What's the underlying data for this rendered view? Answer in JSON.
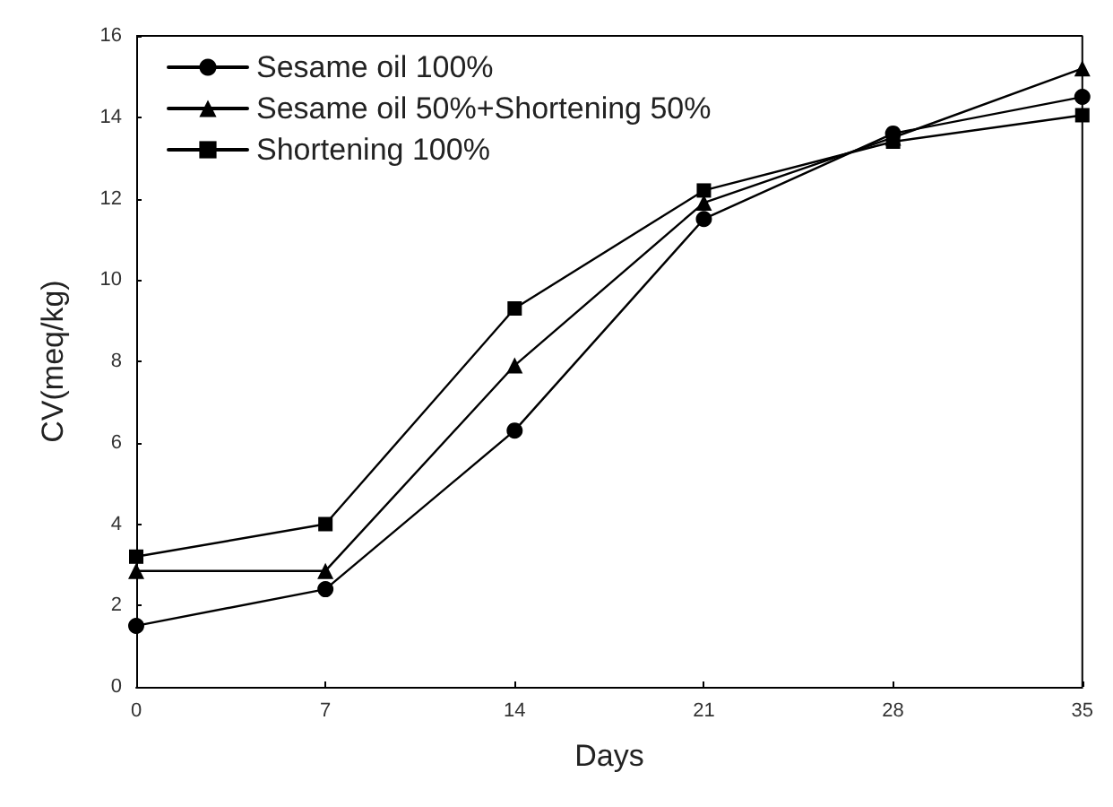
{
  "chart_data": {
    "type": "line",
    "xlabel": "Days",
    "ylabel": "CV(meq/kg)",
    "x": [
      0,
      7,
      14,
      21,
      28,
      35
    ],
    "xlim": [
      0,
      35
    ],
    "xticks": [
      0,
      7,
      14,
      21,
      28,
      35
    ],
    "ylim": [
      0,
      16
    ],
    "yticks": [
      0,
      2,
      4,
      6,
      8,
      10,
      12,
      14,
      16
    ],
    "grid": false,
    "legend": "top left",
    "line_style": "solid",
    "series": [
      {
        "name": "Sesame oil 100%",
        "color": "#000000",
        "marker": "circle",
        "values": [
          1.5,
          2.4,
          6.3,
          11.5,
          13.6,
          14.5
        ]
      },
      {
        "name": "Sesame oil 50%+Shortening 50%",
        "color": "#000000",
        "marker": "triangle",
        "values": [
          2.85,
          2.85,
          7.9,
          11.9,
          13.5,
          15.2
        ]
      },
      {
        "name": "Shortening 100%",
        "color": "#000000",
        "marker": "square",
        "values": [
          3.2,
          4.0,
          9.3,
          12.2,
          13.4,
          14.05
        ]
      }
    ]
  }
}
